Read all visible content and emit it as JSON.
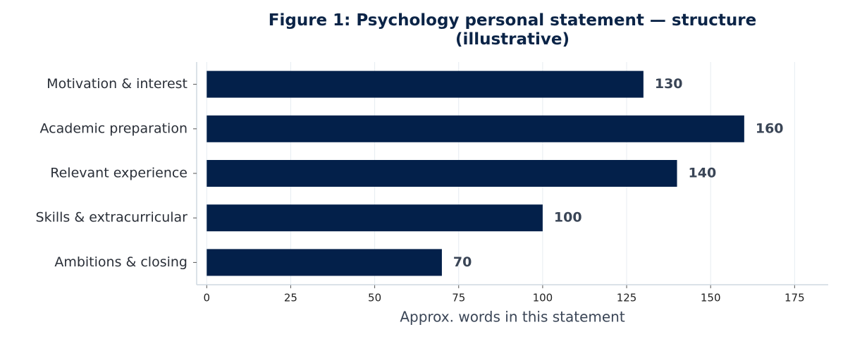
{
  "chart_data": {
    "type": "bar",
    "orientation": "horizontal",
    "title": "Figure 1: Psychology personal statement — structure\n(illustrative)",
    "x_label": "Approx. words in this statement",
    "categories": [
      "Motivation & interest",
      "Academic preparation",
      "Relevant experience",
      "Skills & extracurricular",
      "Ambitions & closing"
    ],
    "values": [
      130,
      160,
      140,
      100,
      70
    ],
    "color": "#03204a",
    "xlim": [
      -3,
      185
    ],
    "xticks": [
      0,
      25,
      50,
      75,
      100,
      125,
      150,
      175
    ],
    "grid": true
  }
}
